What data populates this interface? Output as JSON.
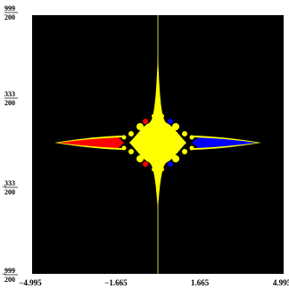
{
  "chart_data": {
    "type": "heatmap",
    "x_ticks": [
      "−4.995",
      "−1.665",
      "1.665",
      "4.995"
    ],
    "y_ticks": [
      {
        "num": "999",
        "den": "200",
        "sign": ""
      },
      {
        "num": "333",
        "den": "200",
        "sign": ""
      },
      {
        "num": "333",
        "den": "200",
        "sign": "−"
      },
      {
        "num": "999",
        "den": "200",
        "sign": "−"
      }
    ],
    "xlim": [
      -4.995,
      4.995
    ],
    "ylim": [
      -4.995,
      4.995
    ],
    "background_color": "#000000",
    "region_colors": {
      "left": "#ff0000",
      "center": "#ffff00",
      "right": "#0000ff",
      "axis_line": "#ffff66"
    }
  }
}
